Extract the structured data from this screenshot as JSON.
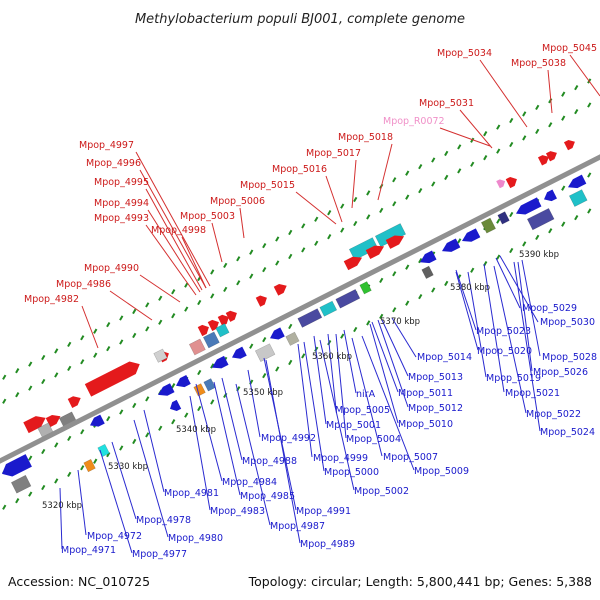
{
  "title": "Methylobacterium populi BJ001, complete genome",
  "footer": {
    "accession": "Accession: NC_010725",
    "summary": "Topology: circular; Length: 5,800,441 bp; Genes: 5,388"
  },
  "colors": {
    "forward": "#e41a1c",
    "reverse": "#1a1acc",
    "rna": "#ee88cc",
    "backbone": "#888888",
    "tick": "#228b22"
  },
  "scale_labels": [
    "5320 kbp",
    "5330 kbp",
    "5340 kbp",
    "5350 kbp",
    "5360 kbp",
    "5370 kbp",
    "5380 kbp",
    "5390 kbp"
  ],
  "upper_labels": [
    "Mpop_5045",
    "Mpop_5034",
    "Mpop_5038",
    "Mpop_5031",
    "Mpop_R0072",
    "Mpop_5018",
    "Mpop_5017",
    "Mpop_5016",
    "Mpop_5015",
    "Mpop_5006",
    "Mpop_5003",
    "Mpop_4997",
    "Mpop_4996",
    "Mpop_4995",
    "Mpop_4994",
    "Mpop_4993",
    "Mpop_4998",
    "Mpop_4990",
    "Mpop_4986",
    "Mpop_4982"
  ],
  "lower_labels": [
    "Mpop_5029",
    "Mpop_5030",
    "Mpop_5023",
    "Mpop_5020",
    "Mpop_5028",
    "Mpop_5026",
    "Mpop_5019",
    "Mpop_5021",
    "Mpop_5022",
    "Mpop_5024",
    "Mpop_5014",
    "Mpop_5013",
    "Mpop_5011",
    "Mpop_5012",
    "Mpop_5010",
    "nirA",
    "Mpop_5005",
    "Mpop_5001",
    "Mpop_5004",
    "Mpop_4992",
    "Mpop_4988",
    "Mpop_4999",
    "Mpop_5007",
    "Mpop_5000",
    "Mpop_5009",
    "Mpop_5002",
    "Mpop_4984",
    "Mpop_4981",
    "Mpop_4985",
    "Mpop_4983",
    "Mpop_4991",
    "Mpop_4987",
    "Mpop_4978",
    "Mpop_4989",
    "Mpop_4980",
    "Mpop_4972",
    "Mpop_4971",
    "Mpop_4977"
  ]
}
